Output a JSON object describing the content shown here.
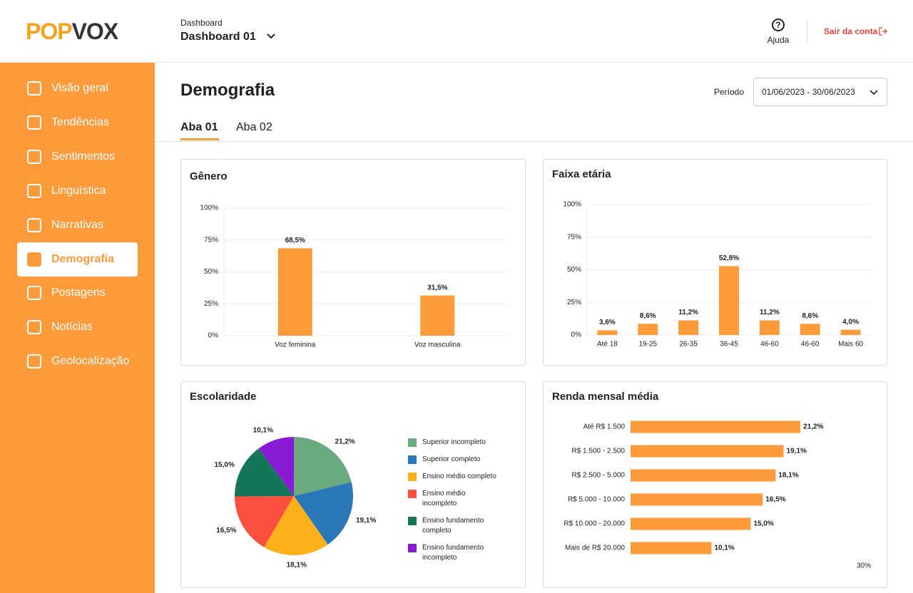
{
  "header": {
    "logo": "POPVOX",
    "breadcrumb": "Dashboard",
    "dashboard": "Dashboard 01",
    "help": "Ajuda",
    "logout": "Sair da conta"
  },
  "sidebar": {
    "items": [
      "Visão geral",
      "Tendências",
      "Sentimentos",
      "Linguística",
      "Narrativas",
      "Demografia",
      "Postagens",
      "Notícias",
      "Geolocalização"
    ],
    "active": "Demografia"
  },
  "page": {
    "title": "Demografia",
    "period_label": "Período",
    "period": "01/06/2023 - 30/06/2023",
    "tabs": [
      "Aba 01",
      "Aba 02"
    ]
  },
  "chart_data": [
    {
      "type": "bar",
      "title": "Gênero",
      "categories": [
        "Voz feminina",
        "Voz masculina"
      ],
      "values": [
        68.5,
        31.5
      ],
      "value_labels": [
        "68,5%",
        "31,5%"
      ],
      "color": "#fd9a3a",
      "ylim": [
        0,
        100
      ],
      "yticks": [
        {
          "value": 0,
          "label": "0%"
        },
        {
          "value": 25,
          "label": "25%"
        },
        {
          "value": 50,
          "label": "50%"
        },
        {
          "value": 75,
          "label": "75%"
        },
        {
          "value": 100,
          "label": "100%"
        }
      ],
      "grid": true
    },
    {
      "type": "bar",
      "title": "Faixa etária",
      "categories": [
        "Até 18",
        "19-25",
        "26-35",
        "36-45",
        "46-60",
        "46-60",
        "Mais 60"
      ],
      "values": [
        3.6,
        8.6,
        11.2,
        52.8,
        11.2,
        8.6,
        4.0
      ],
      "value_labels": [
        "3,6%",
        "8,6%",
        "11,2%",
        "52,8%",
        "11,2%",
        "8,6%",
        "4,0%"
      ],
      "color": "#fd9a3a",
      "ylim": [
        0,
        100
      ],
      "yticks": [
        {
          "value": 0,
          "label": "0%"
        },
        {
          "value": 25,
          "label": "25%"
        },
        {
          "value": 50,
          "label": "50%"
        },
        {
          "value": 75,
          "label": "75%"
        },
        {
          "value": 100,
          "label": "100%"
        }
      ],
      "grid": true
    },
    {
      "type": "pie",
      "title": "Escolaridade",
      "categories": [
        "Superior incompleto",
        "Superior completo",
        "Ensino médio completo",
        "Ensino médio incompleto",
        "Ensino fundamento completo",
        "Ensino fundamento incompleto"
      ],
      "values": [
        21.2,
        19.1,
        18.1,
        16.5,
        15.0,
        10.1
      ],
      "value_labels": [
        "21,2%",
        "19,1%",
        "18,1%",
        "16,5%",
        "15,0%",
        "10,1%"
      ],
      "colors": [
        "#6aaa7f",
        "#2a78b8",
        "#fcb11a",
        "#fc4f3e",
        "#15755a",
        "#8a1ad6"
      ]
    },
    {
      "type": "hbar",
      "title": "Renda mensal média",
      "categories": [
        "Até R$ 1.500",
        "R$ 1.500 - 2.500",
        "R$ 2.500 - 5.000",
        "R$ 5.000 - 10.000",
        "R$ 10.000 - 20.000",
        "Mais de R$ 20.000"
      ],
      "values": [
        21.2,
        19.1,
        18.1,
        16.5,
        15.0,
        10.1
      ],
      "value_labels": [
        "21,2%",
        "19,1%",
        "18,1%",
        "16,5%",
        "15,0%",
        "10,1%"
      ],
      "color": "#fd9a3a",
      "xlim": [
        0,
        30
      ],
      "xticks": [
        {
          "value": 30,
          "label": "30%"
        }
      ]
    }
  ]
}
